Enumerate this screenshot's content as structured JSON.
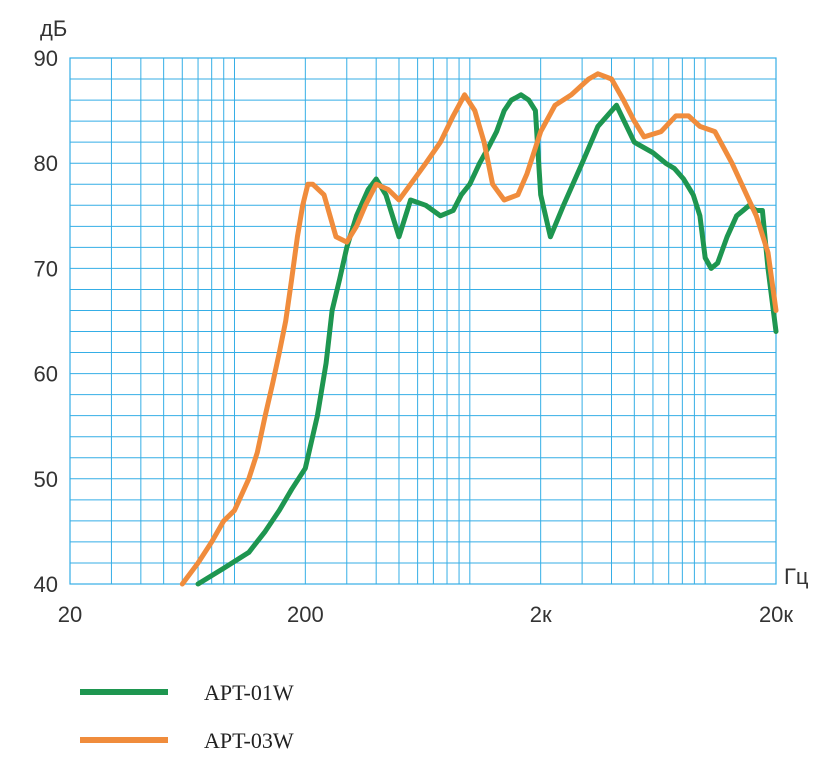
{
  "chart_data": {
    "type": "line",
    "ylabel": "дБ",
    "xlabel": "Гц",
    "x_scale": "log",
    "xlim": [
      20,
      20000
    ],
    "ylim": [
      40,
      90
    ],
    "grid": true,
    "legend_position": "bottom-left",
    "x_tick_values": [
      20,
      200,
      2000,
      20000
    ],
    "x_tick_labels": [
      "20",
      "200",
      "2к",
      "20к"
    ],
    "y_ticks": [
      40,
      50,
      60,
      70,
      80,
      90
    ],
    "series": [
      {
        "name": "APT-01W",
        "color": "#1e9650",
        "x": [
          70,
          90,
          115,
          135,
          155,
          175,
          200,
          225,
          245,
          260,
          280,
          300,
          330,
          370,
          400,
          440,
          500,
          560,
          650,
          750,
          850,
          920,
          1000,
          1100,
          1200,
          1300,
          1400,
          1500,
          1560,
          1650,
          1780,
          1900,
          2000,
          2200,
          2500,
          3000,
          3500,
          4200,
          5000,
          6000,
          6800,
          7400,
          8100,
          8900,
          9500,
          10000,
          10600,
          11300,
          12400,
          13600,
          14500,
          15400,
          16500,
          17500,
          18500,
          20000
        ],
        "y": [
          40,
          41.5,
          43,
          45,
          47,
          49,
          51,
          56,
          61,
          66,
          69,
          72,
          75,
          77.5,
          78.5,
          77,
          73,
          76.5,
          76,
          75,
          75.5,
          77,
          78,
          80,
          81.5,
          83,
          85,
          86,
          86.2,
          86.5,
          86,
          85,
          77,
          73,
          76,
          80,
          83.5,
          85.5,
          82,
          81,
          80,
          79.5,
          78.5,
          77,
          75,
          71,
          70,
          70.5,
          73,
          75,
          75.5,
          76,
          75.5,
          75.5,
          70,
          64
        ]
      },
      {
        "name": "APT-03W",
        "color": "#f08c3c",
        "x": [
          60,
          70,
          80,
          90,
          100,
          115,
          125,
          135,
          145,
          155,
          165,
          175,
          185,
          195,
          205,
          215,
          240,
          270,
          300,
          330,
          360,
          400,
          450,
          500,
          560,
          650,
          750,
          850,
          950,
          1050,
          1150,
          1250,
          1400,
          1600,
          1750,
          2000,
          2300,
          2700,
          3200,
          3500,
          4000,
          4500,
          5000,
          5500,
          6500,
          7500,
          8500,
          9500,
          11000,
          13000,
          15000,
          16500,
          18500,
          20000
        ],
        "y": [
          40,
          42,
          44,
          46,
          47,
          50,
          52.5,
          56,
          59,
          62,
          65,
          69,
          73,
          76,
          78,
          78,
          77,
          73,
          72.5,
          74,
          76,
          78,
          77.5,
          76.5,
          78,
          80,
          82,
          84.5,
          86.5,
          85,
          82,
          78,
          76.5,
          77,
          79,
          83,
          85.5,
          86.5,
          88,
          88.5,
          88,
          86,
          84,
          82.5,
          83,
          84.5,
          84.5,
          83.5,
          83,
          80,
          77,
          75,
          71.5,
          66
        ]
      }
    ]
  }
}
